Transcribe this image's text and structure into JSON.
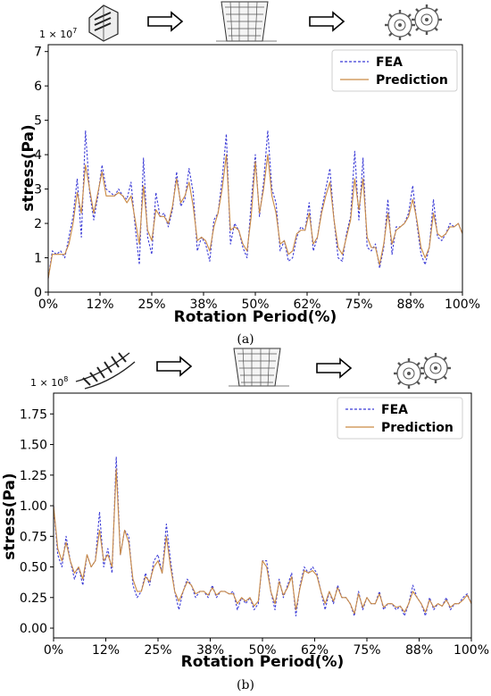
{
  "chart_data": [
    {
      "type": "line",
      "panel_label": "(a)",
      "multiplier_label": "1 × 10",
      "multiplier_exp": "7",
      "xlabel": "Rotation Period(%)",
      "ylabel": "stress(Pa)",
      "xlim": [
        0,
        100
      ],
      "ylim": [
        0,
        7.2
      ],
      "x_ticks": [
        0,
        12.5,
        25,
        37.5,
        50,
        62.5,
        75,
        87.5,
        100
      ],
      "x_tick_labels": [
        "0%",
        "12%",
        "25%",
        "38%",
        "50%",
        "62%",
        "75%",
        "88%",
        "100%"
      ],
      "y_ticks": [
        0,
        1,
        2,
        3,
        4,
        5,
        6,
        7
      ],
      "y_tick_labels": [
        "0",
        "1",
        "2",
        "3",
        "4",
        "5",
        "6",
        "7"
      ],
      "legend_position": "top-right",
      "process_icons": [
        "cutter-icon",
        "arrow-right-icon",
        "mesh-icon",
        "arrow-right-icon",
        "gears-icon"
      ],
      "series": [
        {
          "name": "FEA",
          "color": "#3b3bd6",
          "style": "dashed",
          "x": [
            0,
            1,
            2,
            3,
            4,
            5,
            6,
            7,
            8,
            9,
            10,
            11,
            12,
            13,
            14,
            15,
            16,
            17,
            18,
            19,
            20,
            21,
            22,
            23,
            24,
            25,
            26,
            27,
            28,
            29,
            30,
            31,
            32,
            33,
            34,
            35,
            36,
            37,
            38,
            39,
            40,
            41,
            42,
            43,
            44,
            45,
            46,
            47,
            48,
            49,
            50,
            51,
            52,
            53,
            54,
            55,
            56,
            57,
            58,
            59,
            60,
            61,
            62,
            63,
            64,
            65,
            66,
            67,
            68,
            69,
            70,
            71,
            72,
            73,
            74,
            75,
            76,
            77,
            78,
            79,
            80,
            81,
            82,
            83,
            84,
            85,
            86,
            87,
            88,
            89,
            90,
            91,
            92,
            93,
            94,
            95,
            96,
            97,
            98,
            99,
            100
          ],
          "values": [
            0.4,
            1.2,
            1.1,
            1.2,
            1.0,
            1.6,
            2.2,
            3.3,
            1.6,
            4.7,
            2.9,
            2.1,
            2.8,
            3.7,
            3.0,
            2.9,
            2.8,
            3.0,
            2.8,
            2.7,
            3.2,
            1.9,
            0.8,
            3.9,
            1.6,
            1.1,
            2.9,
            2.2,
            2.3,
            1.9,
            2.4,
            3.5,
            2.5,
            2.7,
            3.6,
            2.9,
            1.2,
            1.6,
            1.4,
            0.9,
            2.1,
            2.3,
            3.3,
            4.6,
            1.4,
            2.0,
            1.8,
            1.3,
            1.0,
            2.6,
            4.0,
            2.2,
            3.2,
            4.7,
            3.0,
            2.6,
            1.2,
            1.5,
            0.9,
            1.0,
            1.6,
            1.9,
            1.8,
            2.6,
            1.2,
            1.6,
            2.4,
            3.0,
            3.6,
            2.1,
            1.0,
            0.9,
            1.7,
            2.2,
            4.1,
            2.1,
            3.9,
            1.3,
            1.2,
            1.4,
            0.7,
            1.3,
            2.7,
            1.1,
            1.9,
            1.9,
            2.0,
            2.3,
            3.1,
            2.0,
            1.1,
            0.8,
            1.3,
            2.7,
            1.6,
            1.5,
            1.7,
            2.0,
            1.9,
            2.0,
            1.7
          ]
        },
        {
          "name": "Prediction",
          "color": "#c98a45",
          "style": "solid",
          "x": [
            0,
            1,
            2,
            3,
            4,
            5,
            6,
            7,
            8,
            9,
            10,
            11,
            12,
            13,
            14,
            15,
            16,
            17,
            18,
            19,
            20,
            21,
            22,
            23,
            24,
            25,
            26,
            27,
            28,
            29,
            30,
            31,
            32,
            33,
            34,
            35,
            36,
            37,
            38,
            39,
            40,
            41,
            42,
            43,
            44,
            45,
            46,
            47,
            48,
            49,
            50,
            51,
            52,
            53,
            54,
            55,
            56,
            57,
            58,
            59,
            60,
            61,
            62,
            63,
            64,
            65,
            66,
            67,
            68,
            69,
            70,
            71,
            72,
            73,
            74,
            75,
            76,
            77,
            78,
            79,
            80,
            81,
            82,
            83,
            84,
            85,
            86,
            87,
            88,
            89,
            90,
            91,
            92,
            93,
            94,
            95,
            96,
            97,
            98,
            99,
            100
          ],
          "values": [
            0.4,
            1.1,
            1.1,
            1.1,
            1.1,
            1.4,
            2.0,
            2.9,
            2.3,
            3.7,
            3.0,
            2.3,
            2.9,
            3.5,
            2.8,
            2.8,
            2.8,
            2.9,
            2.8,
            2.6,
            2.8,
            2.1,
            1.4,
            3.1,
            1.8,
            1.5,
            2.4,
            2.2,
            2.2,
            2.0,
            2.5,
            3.3,
            2.6,
            2.8,
            3.2,
            2.5,
            1.5,
            1.6,
            1.5,
            1.2,
            1.9,
            2.3,
            3.0,
            4.0,
            1.8,
            1.9,
            1.8,
            1.4,
            1.2,
            2.2,
            3.8,
            2.3,
            3.0,
            4.0,
            2.8,
            2.3,
            1.4,
            1.5,
            1.1,
            1.2,
            1.7,
            1.8,
            1.8,
            2.3,
            1.4,
            1.6,
            2.3,
            2.8,
            3.2,
            2.1,
            1.3,
            1.1,
            1.6,
            2.1,
            3.3,
            2.4,
            3.3,
            1.6,
            1.3,
            1.3,
            0.8,
            1.4,
            2.3,
            1.4,
            1.8,
            1.9,
            2.0,
            2.2,
            2.7,
            2.1,
            1.3,
            1.0,
            1.3,
            2.3,
            1.7,
            1.6,
            1.7,
            1.9,
            1.9,
            2.0,
            1.7
          ]
        }
      ]
    },
    {
      "type": "line",
      "panel_label": "(b)",
      "multiplier_label": "1 × 10",
      "multiplier_exp": "8",
      "xlabel": "Rotation Period(%)",
      "ylabel": "stress(Pa)",
      "xlim": [
        0,
        100
      ],
      "ylim": [
        -0.08,
        1.92
      ],
      "x_ticks": [
        0,
        12.5,
        25,
        37.5,
        50,
        62.5,
        75,
        87.5,
        100
      ],
      "x_tick_labels": [
        "0%",
        "12%",
        "25%",
        "38%",
        "50%",
        "62%",
        "75%",
        "88%",
        "100%"
      ],
      "y_ticks": [
        0,
        0.25,
        0.5,
        0.75,
        1.0,
        1.25,
        1.5,
        1.75
      ],
      "y_tick_labels": [
        "0.00",
        "0.25",
        "0.50",
        "0.75",
        "1.00",
        "1.25",
        "1.50",
        "1.75"
      ],
      "legend_position": "top-right",
      "process_icons": [
        "hob-icon",
        "arrow-right-icon",
        "mesh-icon",
        "arrow-right-icon",
        "gears-icon"
      ],
      "series": [
        {
          "name": "FEA",
          "color": "#3b3bd6",
          "style": "dashed",
          "x": [
            0,
            1,
            2,
            3,
            4,
            5,
            6,
            7,
            8,
            9,
            10,
            11,
            12,
            13,
            14,
            15,
            16,
            17,
            18,
            19,
            20,
            21,
            22,
            23,
            24,
            25,
            26,
            27,
            28,
            29,
            30,
            31,
            32,
            33,
            34,
            35,
            36,
            37,
            38,
            39,
            40,
            41,
            42,
            43,
            44,
            45,
            46,
            47,
            48,
            49,
            50,
            51,
            52,
            53,
            54,
            55,
            56,
            57,
            58,
            59,
            60,
            61,
            62,
            63,
            64,
            65,
            66,
            67,
            68,
            69,
            70,
            71,
            72,
            73,
            74,
            75,
            76,
            77,
            78,
            79,
            80,
            81,
            82,
            83,
            84,
            85,
            86,
            87,
            88,
            89,
            90,
            91,
            92,
            93,
            94,
            95,
            96,
            97,
            98,
            99,
            100
          ],
          "values": [
            1.0,
            0.6,
            0.5,
            0.75,
            0.55,
            0.4,
            0.5,
            0.35,
            0.6,
            0.5,
            0.55,
            0.95,
            0.5,
            0.65,
            0.45,
            1.4,
            0.6,
            0.8,
            0.75,
            0.35,
            0.25,
            0.3,
            0.45,
            0.35,
            0.55,
            0.6,
            0.45,
            0.85,
            0.55,
            0.3,
            0.15,
            0.3,
            0.4,
            0.35,
            0.25,
            0.3,
            0.3,
            0.25,
            0.35,
            0.25,
            0.3,
            0.3,
            0.28,
            0.3,
            0.15,
            0.25,
            0.2,
            0.25,
            0.15,
            0.2,
            0.55,
            0.55,
            0.3,
            0.15,
            0.4,
            0.25,
            0.35,
            0.45,
            0.1,
            0.35,
            0.5,
            0.45,
            0.5,
            0.45,
            0.3,
            0.15,
            0.3,
            0.2,
            0.35,
            0.25,
            0.25,
            0.2,
            0.1,
            0.3,
            0.15,
            0.25,
            0.2,
            0.2,
            0.3,
            0.15,
            0.2,
            0.2,
            0.15,
            0.18,
            0.1,
            0.2,
            0.35,
            0.25,
            0.2,
            0.1,
            0.25,
            0.15,
            0.2,
            0.18,
            0.25,
            0.15,
            0.2,
            0.2,
            0.25,
            0.28,
            0.2
          ]
        },
        {
          "name": "Prediction",
          "color": "#c98a45",
          "style": "solid",
          "x": [
            0,
            1,
            2,
            3,
            4,
            5,
            6,
            7,
            8,
            9,
            10,
            11,
            12,
            13,
            14,
            15,
            16,
            17,
            18,
            19,
            20,
            21,
            22,
            23,
            24,
            25,
            26,
            27,
            28,
            29,
            30,
            31,
            32,
            33,
            34,
            35,
            36,
            37,
            38,
            39,
            40,
            41,
            42,
            43,
            44,
            45,
            46,
            47,
            48,
            49,
            50,
            51,
            52,
            53,
            54,
            55,
            56,
            57,
            58,
            59,
            60,
            61,
            62,
            63,
            64,
            65,
            66,
            67,
            68,
            69,
            70,
            71,
            72,
            73,
            74,
            75,
            76,
            77,
            78,
            79,
            80,
            81,
            82,
            83,
            84,
            85,
            86,
            87,
            88,
            89,
            90,
            91,
            92,
            93,
            94,
            95,
            96,
            97,
            98,
            99,
            100
          ],
          "values": [
            1.0,
            0.65,
            0.55,
            0.7,
            0.55,
            0.45,
            0.5,
            0.4,
            0.6,
            0.5,
            0.55,
            0.8,
            0.55,
            0.6,
            0.5,
            1.3,
            0.6,
            0.8,
            0.7,
            0.4,
            0.3,
            0.3,
            0.42,
            0.38,
            0.5,
            0.55,
            0.45,
            0.75,
            0.5,
            0.3,
            0.22,
            0.3,
            0.38,
            0.35,
            0.28,
            0.3,
            0.3,
            0.27,
            0.33,
            0.27,
            0.3,
            0.3,
            0.28,
            0.28,
            0.2,
            0.25,
            0.22,
            0.25,
            0.18,
            0.22,
            0.55,
            0.5,
            0.3,
            0.2,
            0.38,
            0.27,
            0.33,
            0.42,
            0.15,
            0.33,
            0.47,
            0.45,
            0.47,
            0.43,
            0.3,
            0.2,
            0.3,
            0.22,
            0.33,
            0.25,
            0.25,
            0.2,
            0.12,
            0.28,
            0.17,
            0.25,
            0.2,
            0.2,
            0.28,
            0.17,
            0.2,
            0.2,
            0.17,
            0.18,
            0.13,
            0.2,
            0.3,
            0.25,
            0.2,
            0.13,
            0.23,
            0.17,
            0.2,
            0.18,
            0.23,
            0.17,
            0.2,
            0.2,
            0.23,
            0.27,
            0.2
          ]
        }
      ]
    }
  ]
}
